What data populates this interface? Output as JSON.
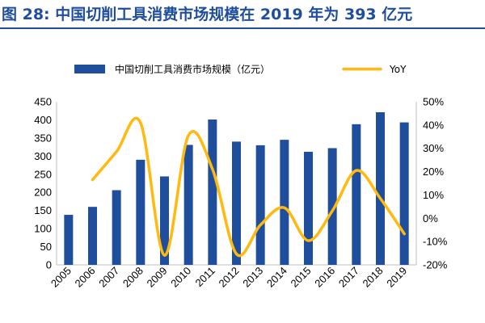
{
  "header": {
    "title": "图 28: 中国切削工具消费市场规模在 2019 年为 393 亿元"
  },
  "chart_data": {
    "type": "bar",
    "title": "图 28: 中国切削工具消费市场规模在 2019 年为 393 亿元",
    "categories": [
      "2005",
      "2006",
      "2007",
      "2008",
      "2009",
      "2010",
      "2011",
      "2012",
      "2013",
      "2014",
      "2015",
      "2016",
      "2017",
      "2018",
      "2019"
    ],
    "series": [
      {
        "name": "中国切削工具消费市场规模（亿元）",
        "type": "bar",
        "axis": "left",
        "color": "#1f4e9c",
        "values": [
          138,
          160,
          206,
          290,
          244,
          331,
          401,
          340,
          330,
          345,
          312,
          322,
          388,
          421,
          393
        ]
      },
      {
        "name": "YoY",
        "type": "line",
        "axis": "right",
        "color": "#ffb90f",
        "values": [
          null,
          16.5,
          28.6,
          41.0,
          -15.9,
          35.6,
          21.1,
          -15.3,
          -2.9,
          4.5,
          -9.6,
          3.2,
          20.5,
          8.5,
          -6.7
        ]
      }
    ],
    "left_axis": {
      "min": 0,
      "max": 450,
      "ticks": [
        "0",
        "50",
        "100",
        "150",
        "200",
        "250",
        "300",
        "350",
        "400",
        "450"
      ]
    },
    "right_axis": {
      "min": -20,
      "max": 50,
      "ticks": [
        "-20%",
        "-10%",
        "0%",
        "10%",
        "20%",
        "30%",
        "40%",
        "50%"
      ]
    },
    "legend": "top",
    "grid": false
  }
}
